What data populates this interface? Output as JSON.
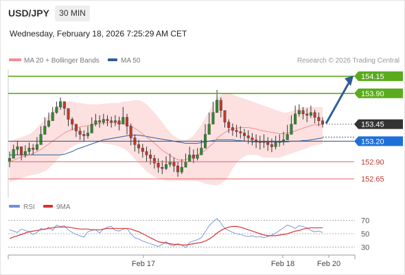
{
  "header": {
    "pair": "USD/JPY",
    "timeframe": "30 MIN",
    "datetime": "Wednesday, February 18, 2026 7:25:29 AM CET"
  },
  "legend": {
    "ma20_label": "MA 20 + Bollinger Bands",
    "ma50_label": "MA 50",
    "rsi_label": "RSI",
    "ma9_label": "9MA",
    "credit": "Research © 2026 Trading Central"
  },
  "colors": {
    "ma20": "#f28e8e",
    "ma50": "#2e5c9a",
    "band_fill": "#fde0e0",
    "up_candle": "#2e8b2e",
    "down_candle": "#c0392b",
    "resistance": "#5aab1e",
    "support": "#e06060",
    "pivot": "#1e6fd9",
    "price_tag": "#333333",
    "arrow": "#2e5c9a",
    "rsi": "#6e8fd8",
    "rsi_ma": "#d83030"
  },
  "chart_data": [
    {
      "type": "candlestick",
      "title": "USD/JPY 30 MIN",
      "y_range": [
        152.38,
        154.25
      ],
      "last_price": 153.45,
      "x_labels": [
        "Feb 17",
        "Feb 18",
        "Feb 20"
      ],
      "levels": [
        {
          "value": "154.15",
          "kind": "resistance"
        },
        {
          "value": "153.90",
          "kind": "resistance"
        },
        {
          "value": "153.45",
          "kind": "last"
        },
        {
          "value": "153.20",
          "kind": "pivot"
        },
        {
          "value": "152.90",
          "kind": "support"
        },
        {
          "value": "152.65",
          "kind": "support"
        }
      ],
      "close": [
        152.95,
        153.08,
        153.12,
        153.0,
        153.05,
        153.1,
        153.08,
        153.15,
        153.3,
        153.42,
        153.5,
        153.62,
        153.7,
        153.78,
        153.68,
        153.52,
        153.45,
        153.35,
        153.3,
        153.28,
        153.32,
        153.45,
        153.5,
        153.48,
        153.52,
        153.5,
        153.48,
        153.5,
        153.45,
        153.55,
        153.42,
        153.25,
        153.15,
        153.1,
        153.05,
        153.0,
        152.95,
        152.88,
        152.82,
        152.8,
        152.86,
        152.9,
        152.84,
        152.75,
        152.82,
        152.9,
        153.0,
        152.95,
        153.0,
        153.1,
        153.3,
        153.45,
        153.62,
        153.8,
        153.65,
        153.48,
        153.4,
        153.36,
        153.34,
        153.32,
        153.28,
        153.25,
        153.22,
        153.2,
        153.18,
        153.2,
        153.15,
        153.12,
        153.18,
        153.2,
        153.22,
        153.3,
        153.45,
        153.6,
        153.65,
        153.6,
        153.58,
        153.62,
        153.55,
        153.5,
        153.45
      ],
      "high": [
        153.05,
        153.15,
        153.2,
        153.12,
        153.14,
        153.18,
        153.16,
        153.26,
        153.42,
        153.55,
        153.62,
        153.7,
        153.78,
        153.84,
        153.76,
        153.66,
        153.55,
        153.45,
        153.4,
        153.36,
        153.42,
        153.55,
        153.6,
        153.58,
        153.6,
        153.58,
        153.56,
        153.58,
        153.56,
        153.7,
        153.6,
        153.46,
        153.3,
        153.22,
        153.16,
        153.12,
        153.08,
        153.0,
        152.95,
        152.92,
        152.98,
        153.02,
        152.96,
        152.9,
        152.94,
        153.02,
        153.12,
        153.08,
        153.1,
        153.22,
        153.45,
        153.62,
        153.78,
        153.95,
        153.84,
        153.64,
        153.52,
        153.46,
        153.44,
        153.42,
        153.38,
        153.36,
        153.32,
        153.3,
        153.28,
        153.3,
        153.26,
        153.24,
        153.28,
        153.3,
        153.34,
        153.44,
        153.58,
        153.72,
        153.74,
        153.7,
        153.68,
        153.72,
        153.66,
        153.62,
        153.55
      ],
      "low": [
        152.82,
        152.95,
        153.0,
        152.92,
        152.96,
        153.0,
        153.0,
        153.06,
        153.2,
        153.32,
        153.4,
        153.52,
        153.6,
        153.66,
        153.58,
        153.42,
        153.36,
        153.26,
        153.22,
        153.2,
        153.24,
        153.36,
        153.42,
        153.4,
        153.44,
        153.42,
        153.4,
        153.42,
        153.36,
        153.45,
        153.3,
        153.14,
        153.05,
        153.02,
        152.96,
        152.9,
        152.86,
        152.8,
        152.74,
        152.72,
        152.78,
        152.82,
        152.75,
        152.68,
        152.72,
        152.82,
        152.9,
        152.88,
        152.92,
        153.0,
        153.18,
        153.35,
        153.52,
        153.7,
        153.55,
        153.4,
        153.32,
        153.28,
        153.26,
        153.24,
        153.2,
        153.16,
        153.14,
        153.1,
        153.08,
        153.1,
        153.06,
        153.04,
        153.08,
        153.12,
        153.14,
        153.22,
        153.35,
        153.5,
        153.56,
        153.52,
        153.48,
        153.54,
        153.46,
        153.42,
        153.4
      ],
      "ma20": [
        152.9,
        152.92,
        152.95,
        152.97,
        152.98,
        153.0,
        153.02,
        153.05,
        153.08,
        153.12,
        153.16,
        153.2,
        153.24,
        153.28,
        153.32,
        153.35,
        153.37,
        153.39,
        153.41,
        153.42,
        153.43,
        153.44,
        153.45,
        153.46,
        153.47,
        153.47,
        153.47,
        153.47,
        153.46,
        153.46,
        153.44,
        153.42,
        153.39,
        153.35,
        153.31,
        153.26,
        153.22,
        153.17,
        153.12,
        153.07,
        153.03,
        152.99,
        152.96,
        152.93,
        152.92,
        152.93,
        152.96,
        152.98,
        153.0,
        153.03,
        153.07,
        153.12,
        153.17,
        153.24,
        153.29,
        153.33,
        153.36,
        153.38,
        153.39,
        153.4,
        153.4,
        153.4,
        153.39,
        153.38,
        153.36,
        153.35,
        153.34,
        153.33,
        153.32,
        153.31,
        153.31,
        153.32,
        153.33,
        153.35,
        153.37,
        153.39,
        153.41,
        153.43,
        153.44,
        153.44,
        153.45
      ],
      "upper_band": [
        153.2,
        153.22,
        153.24,
        153.26,
        153.28,
        153.3,
        153.34,
        153.4,
        153.46,
        153.52,
        153.58,
        153.64,
        153.7,
        153.74,
        153.76,
        153.78,
        153.78,
        153.77,
        153.76,
        153.75,
        153.74,
        153.74,
        153.74,
        153.74,
        153.75,
        153.75,
        153.76,
        153.76,
        153.76,
        153.78,
        153.78,
        153.79,
        153.8,
        153.8,
        153.78,
        153.74,
        153.68,
        153.62,
        153.55,
        153.48,
        153.4,
        153.33,
        153.28,
        153.24,
        153.22,
        153.22,
        153.24,
        153.28,
        153.36,
        153.44,
        153.54,
        153.64,
        153.74,
        153.84,
        153.88,
        153.9,
        153.9,
        153.88,
        153.86,
        153.84,
        153.82,
        153.8,
        153.78,
        153.76,
        153.74,
        153.72,
        153.7,
        153.68,
        153.66,
        153.64,
        153.62,
        153.62,
        153.64,
        153.66,
        153.68,
        153.7,
        153.7,
        153.7,
        153.7,
        153.7,
        153.7
      ],
      "lower_band": [
        152.6,
        152.62,
        152.64,
        152.66,
        152.68,
        152.7,
        152.71,
        152.72,
        152.74,
        152.76,
        152.8,
        152.86,
        152.92,
        152.98,
        153.04,
        153.08,
        153.12,
        153.15,
        153.17,
        153.18,
        153.19,
        153.19,
        153.19,
        153.18,
        153.17,
        153.16,
        153.15,
        153.14,
        153.12,
        153.1,
        153.06,
        153.0,
        152.94,
        152.88,
        152.82,
        152.76,
        152.72,
        152.68,
        152.66,
        152.64,
        152.62,
        152.62,
        152.62,
        152.62,
        152.62,
        152.62,
        152.62,
        152.62,
        152.62,
        152.6,
        152.58,
        152.57,
        152.56,
        152.56,
        152.58,
        152.62,
        152.7,
        152.8,
        152.88,
        152.94,
        152.98,
        153.0,
        153.0,
        153.0,
        152.98,
        152.96,
        152.96,
        152.96,
        152.96,
        152.96,
        152.98,
        153.0,
        153.02,
        153.04,
        153.06,
        153.08,
        153.1,
        153.12,
        153.14,
        153.15,
        153.16
      ],
      "ma50": [
        153.0,
        153.0,
        153.0,
        153.0,
        153.0,
        153.0,
        153.0,
        153.0,
        153.0,
        153.0,
        153.0,
        153.0,
        153.0,
        153.0,
        153.01,
        153.03,
        153.05,
        153.08,
        153.1,
        153.12,
        153.14,
        153.16,
        153.18,
        153.2,
        153.22,
        153.23,
        153.24,
        153.25,
        153.26,
        153.27,
        153.28,
        153.29,
        153.29,
        153.29,
        153.28,
        153.27,
        153.26,
        153.25,
        153.24,
        153.23,
        153.22,
        153.21,
        153.2,
        153.19,
        153.18,
        153.17,
        153.17,
        153.17,
        153.17,
        153.18,
        153.19,
        153.2,
        153.21,
        153.22,
        153.22,
        153.22,
        153.22,
        153.22,
        153.21,
        153.21,
        153.2,
        153.2,
        153.19,
        153.19,
        153.19,
        153.19,
        153.19,
        153.19,
        153.19,
        153.19,
        153.19,
        153.19,
        153.2,
        153.2,
        153.2,
        153.21,
        153.21,
        153.22,
        153.23,
        153.24,
        153.25
      ],
      "forecast": {
        "from": 153.45,
        "to": 154.15
      }
    },
    {
      "type": "line",
      "title": "RSI",
      "y_range": [
        20,
        80
      ],
      "y_ticks": [
        "70",
        "50",
        "30"
      ],
      "guide_levels": [
        70,
        50,
        30
      ],
      "rsi": [
        56,
        54,
        52,
        57,
        55,
        53,
        49,
        52,
        58,
        56,
        60,
        55,
        63,
        61,
        62,
        56,
        52,
        49,
        47,
        45,
        53,
        55,
        56,
        51,
        57,
        60,
        61,
        55,
        54,
        57,
        58,
        50,
        44,
        42,
        39,
        37,
        35,
        33,
        31,
        34,
        38,
        33,
        32,
        35,
        33,
        29,
        37,
        39,
        41,
        44,
        53,
        62,
        68,
        73,
        66,
        58,
        55,
        52,
        50,
        49,
        47,
        46,
        47,
        45,
        46,
        44,
        46,
        48,
        51,
        55,
        59,
        63,
        61,
        58,
        62,
        61,
        59,
        55,
        53,
        54,
        52
      ],
      "rsi_ma": [
        43,
        45,
        47,
        49,
        51,
        53,
        54,
        55,
        56,
        57,
        58,
        59,
        60,
        60,
        60,
        60,
        59,
        58,
        57,
        57,
        57,
        56,
        56,
        56,
        57,
        58,
        58,
        58,
        58,
        58,
        58,
        57,
        55,
        53,
        50,
        47,
        44,
        41,
        38,
        37,
        36,
        35,
        34,
        34,
        33,
        33,
        34,
        35,
        36,
        37,
        39,
        42,
        46,
        51,
        55,
        58,
        60,
        61,
        61,
        60,
        58,
        56,
        54,
        52,
        50,
        48,
        47,
        47,
        47,
        48,
        49,
        50,
        52,
        54,
        55,
        57,
        58,
        59,
        59,
        59,
        59
      ]
    }
  ]
}
